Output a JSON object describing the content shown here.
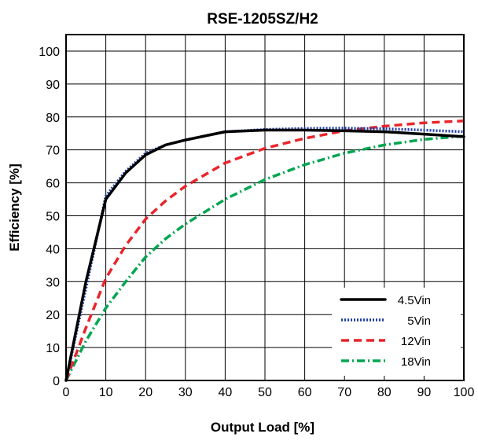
{
  "chart_data": {
    "type": "line",
    "title": "RSE-1205SZ/H2",
    "xlabel": "Output Load [%]",
    "ylabel": "Efficiency [%]",
    "xlim": [
      0,
      100
    ],
    "ylim": [
      0,
      105
    ],
    "xticks": [
      "0",
      "10",
      "20",
      "30",
      "40",
      "50",
      "60",
      "70",
      "80",
      "90",
      "100"
    ],
    "yticks": [
      "0",
      "10",
      "20",
      "30",
      "40",
      "50",
      "60",
      "70",
      "80",
      "90",
      "100"
    ],
    "grid": true,
    "legend_position": "bottom-right",
    "series": [
      {
        "name": "4.5Vin",
        "color": "#000000",
        "style": "solid",
        "x": [
          0,
          5,
          10,
          15,
          20,
          25,
          30,
          40,
          50,
          60,
          70,
          80,
          90,
          100
        ],
        "y": [
          0,
          30,
          55,
          63,
          68.5,
          71.5,
          73,
          75.5,
          76,
          76,
          75.8,
          75.5,
          74.8,
          74
        ]
      },
      {
        "name": "5Vin",
        "color": "#1f3fa8",
        "style": "dotted",
        "x": [
          0,
          5,
          10,
          15,
          20,
          25,
          30,
          40,
          50,
          60,
          70,
          80,
          90,
          100
        ],
        "y": [
          0,
          28,
          56,
          63.5,
          69,
          71.5,
          73,
          75.5,
          76.2,
          76.5,
          76.6,
          76.4,
          76,
          75.5
        ]
      },
      {
        "name": "12Vin",
        "color": "#e8252b",
        "style": "dashed",
        "x": [
          0,
          5,
          10,
          15,
          20,
          25,
          30,
          40,
          50,
          60,
          70,
          80,
          90,
          100
        ],
        "y": [
          0,
          16,
          31,
          41,
          49,
          54.5,
          59,
          66,
          70.5,
          73.5,
          75.8,
          77.2,
          78.2,
          78.8
        ]
      },
      {
        "name": "18Vin",
        "color": "#00a651",
        "style": "dash-dot",
        "x": [
          0,
          5,
          10,
          15,
          20,
          25,
          30,
          40,
          50,
          60,
          70,
          80,
          90,
          100
        ],
        "y": [
          0,
          12,
          22,
          30,
          37.5,
          43,
          47.5,
          55,
          61,
          65.5,
          69,
          71.5,
          73.2,
          74.2
        ]
      }
    ]
  }
}
